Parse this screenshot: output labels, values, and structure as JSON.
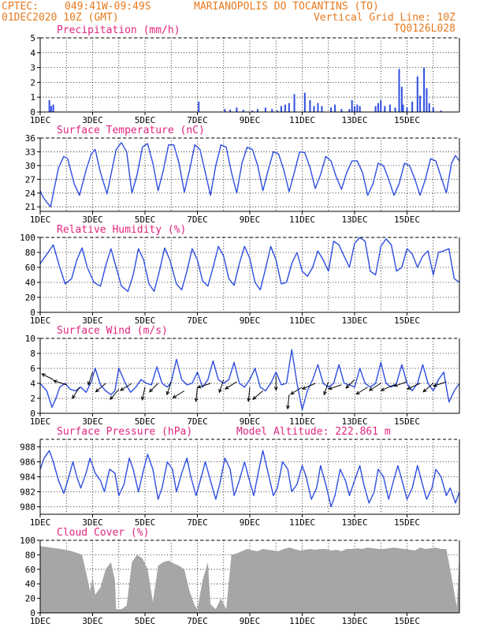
{
  "header": {
    "line1_left": "CPTEC:",
    "line1_coords": "049:41W-09:49S",
    "line1_station": "MARIANOPOLIS DO TOCANTINS (TO)",
    "line2_left": "01DEC2020 10Z (GMT)",
    "line2_right": "Vertical Grid Line: 10Z",
    "line3_right": "TQ0126L028"
  },
  "colors": {
    "header": "#e87a1e",
    "panel_title": "#e0257f",
    "series": "#2f4ee0",
    "cloud": "#a6a6a6",
    "arrow": "#000000"
  },
  "chart_data": [
    {
      "id": "precip",
      "type": "bar",
      "title": "Precipitation (mm/h)",
      "x_ticks": [
        "1DEC",
        "3DEC",
        "5DEC",
        "7DEC",
        "9DEC",
        "11DEC",
        "13DEC",
        "15DEC"
      ],
      "ylim": [
        0,
        5
      ],
      "y_ticks": [
        0,
        1,
        2,
        3,
        4,
        5
      ],
      "x_unit": "day since 01DEC2020 10Z",
      "x": [
        0.35,
        0.42,
        0.5,
        6.05,
        7.05,
        7.25,
        7.5,
        7.75,
        8.1,
        8.3,
        8.6,
        8.85,
        9.05,
        9.2,
        9.35,
        9.5,
        9.7,
        10.1,
        10.3,
        10.45,
        10.6,
        10.75,
        11.1,
        11.25,
        11.5,
        11.8,
        11.9,
        12.0,
        12.1,
        12.2,
        12.8,
        12.9,
        13.0,
        13.15,
        13.35,
        13.55,
        13.7,
        13.8,
        13.85,
        14.0,
        14.2,
        14.4,
        14.5,
        14.65,
        14.75,
        14.85,
        15.0,
        15.3
      ],
      "values": [
        0.8,
        0.4,
        0.5,
        0.7,
        0.2,
        0.15,
        0.3,
        0.15,
        0.1,
        0.2,
        0.3,
        0.2,
        0.1,
        0.4,
        0.5,
        0.6,
        1.2,
        1.3,
        0.8,
        0.4,
        0.6,
        0.4,
        0.3,
        0.5,
        0.2,
        0.2,
        0.8,
        0.4,
        0.5,
        0.4,
        0.4,
        0.6,
        0.8,
        0.4,
        0.5,
        0.3,
        2.9,
        1.7,
        0.5,
        0.3,
        0.7,
        2.4,
        1.1,
        3.0,
        1.6,
        0.6,
        0.3,
        0.1
      ]
    },
    {
      "id": "temp",
      "type": "line",
      "title": "Surface Temperature (nC)",
      "x_ticks": [
        "1DEC",
        "3DEC",
        "5DEC",
        "7DEC",
        "9DEC",
        "11DEC",
        "13DEC",
        "15DEC"
      ],
      "ylim": [
        20,
        36
      ],
      "y_ticks": [
        21,
        24,
        27,
        30,
        33,
        36
      ],
      "x_unit": "day since 01DEC2020 10Z",
      "x": [
        0,
        0.1,
        0.25,
        0.4,
        0.5,
        0.7,
        0.9,
        1.05,
        1.3,
        1.5,
        1.75,
        1.95,
        2.1,
        2.3,
        2.55,
        2.7,
        2.9,
        3.1,
        3.3,
        3.5,
        3.7,
        3.9,
        4.1,
        4.3,
        4.5,
        4.7,
        4.9,
        5.1,
        5.3,
        5.5,
        5.7,
        5.9,
        6.1,
        6.3,
        6.5,
        6.7,
        6.9,
        7.1,
        7.3,
        7.5,
        7.7,
        7.9,
        8.1,
        8.3,
        8.5,
        8.7,
        8.9,
        9.1,
        9.3,
        9.5,
        9.7,
        9.9,
        10.1,
        10.3,
        10.5,
        10.7,
        10.9,
        11.1,
        11.3,
        11.5,
        11.7,
        11.9,
        12.1,
        12.3,
        12.5,
        12.7,
        12.9,
        13.1,
        13.3,
        13.5,
        13.7,
        13.9,
        14.1,
        14.3,
        14.5,
        14.7,
        14.9,
        15.1,
        15.3,
        15.5,
        15.7,
        15.85,
        16.0
      ],
      "values": [
        24.5,
        23.2,
        22.0,
        21.0,
        24.0,
        29.5,
        32.0,
        31.5,
        26.0,
        23.5,
        29.0,
        32.5,
        33.5,
        28.5,
        23.8,
        28.0,
        33.5,
        35.0,
        33.0,
        24.0,
        28.0,
        34.0,
        34.8,
        30.5,
        24.5,
        29.0,
        34.5,
        34.5,
        30.5,
        24.2,
        29.0,
        34.5,
        33.5,
        28.5,
        23.5,
        30.0,
        34.5,
        34.0,
        28.5,
        24.0,
        30.5,
        34.0,
        33.5,
        30.0,
        24.5,
        29.0,
        33.0,
        32.5,
        29.0,
        24.3,
        28.5,
        33.0,
        32.8,
        29.5,
        25.0,
        28.0,
        32.0,
        31.0,
        27.5,
        24.8,
        28.5,
        31.0,
        31.0,
        28.5,
        23.5,
        26.0,
        30.5,
        30.0,
        27.0,
        23.5,
        26.0,
        30.5,
        30.0,
        27.0,
        23.5,
        27.0,
        31.5,
        31.0,
        27.5,
        24.0,
        30.5,
        32.2,
        31.0
      ]
    },
    {
      "id": "rh",
      "type": "line",
      "title": "Relative Humidity (%)",
      "x_ticks": [
        "1DEC",
        "3DEC",
        "5DEC",
        "7DEC",
        "9DEC",
        "11DEC",
        "13DEC",
        "15DEC"
      ],
      "ylim": [
        0,
        100
      ],
      "y_ticks": [
        0,
        20,
        40,
        60,
        80,
        100
      ],
      "x_unit": "day since 01DEC2020 10Z",
      "x": [
        0,
        0.3,
        0.5,
        0.75,
        0.95,
        1.2,
        1.4,
        1.6,
        1.8,
        2.05,
        2.3,
        2.5,
        2.7,
        2.9,
        3.1,
        3.35,
        3.55,
        3.75,
        3.95,
        4.15,
        4.35,
        4.55,
        4.75,
        4.95,
        5.2,
        5.4,
        5.6,
        5.8,
        6.0,
        6.2,
        6.4,
        6.6,
        6.8,
        7.0,
        7.2,
        7.4,
        7.6,
        7.8,
        8.0,
        8.2,
        8.4,
        8.6,
        8.8,
        9.0,
        9.2,
        9.4,
        9.6,
        9.8,
        10.0,
        10.2,
        10.4,
        10.6,
        10.8,
        11.0,
        11.2,
        11.4,
        11.6,
        11.8,
        12.0,
        12.2,
        12.4,
        12.6,
        12.8,
        13.0,
        13.2,
        13.4,
        13.6,
        13.8,
        14.0,
        14.2,
        14.4,
        14.6,
        14.8,
        15.0,
        15.2,
        15.4,
        15.6,
        15.8,
        16.0
      ],
      "values": [
        65,
        80,
        90,
        60,
        38,
        45,
        70,
        86,
        60,
        40,
        35,
        62,
        85,
        60,
        35,
        28,
        50,
        85,
        70,
        38,
        28,
        55,
        86,
        70,
        38,
        30,
        55,
        85,
        70,
        42,
        35,
        60,
        88,
        75,
        45,
        36,
        65,
        88,
        72,
        40,
        30,
        58,
        88,
        70,
        38,
        40,
        65,
        80,
        55,
        48,
        60,
        82,
        70,
        55,
        95,
        90,
        75,
        60,
        92,
        100,
        95,
        55,
        50,
        88,
        98,
        90,
        55,
        60,
        85,
        78,
        60,
        75,
        82,
        50,
        80,
        82,
        85,
        45,
        40
      ]
    },
    {
      "id": "wind",
      "type": "line",
      "title": "Surface Wind (m/s)",
      "x_ticks": [
        "1DEC",
        "3DEC",
        "5DEC",
        "7DEC",
        "9DEC",
        "11DEC",
        "13DEC",
        "15DEC"
      ],
      "ylim": [
        0,
        10
      ],
      "y_ticks": [
        0,
        2,
        4,
        6,
        8,
        10
      ],
      "x_unit": "day since 01DEC2020 10Z",
      "x": [
        0,
        0.25,
        0.45,
        0.6,
        0.75,
        0.95,
        1.15,
        1.35,
        1.55,
        1.75,
        1.95,
        2.1,
        2.3,
        2.5,
        2.7,
        2.85,
        3.0,
        3.25,
        3.45,
        3.65,
        3.85,
        4.05,
        4.25,
        4.45,
        4.65,
        4.85,
        5.0,
        5.2,
        5.4,
        5.6,
        5.8,
        6.0,
        6.2,
        6.4,
        6.6,
        6.8,
        7.0,
        7.2,
        7.4,
        7.6,
        7.8,
        8.0,
        8.2,
        8.4,
        8.6,
        8.8,
        9.0,
        9.2,
        9.4,
        9.6,
        9.8,
        10.0,
        10.2,
        10.4,
        10.6,
        10.8,
        11.0,
        11.2,
        11.4,
        11.6,
        11.8,
        12.0,
        12.2,
        12.4,
        12.6,
        12.8,
        13.0,
        13.2,
        13.4,
        13.6,
        13.8,
        14.0,
        14.2,
        14.4,
        14.6,
        14.8,
        15.0,
        15.2,
        15.4,
        15.6,
        15.8,
        16.0
      ],
      "values": [
        4.0,
        3.0,
        0.8,
        2.0,
        3.5,
        4.0,
        3.2,
        3.0,
        3.5,
        2.8,
        4.2,
        6.0,
        3.8,
        3.0,
        2.5,
        3.0,
        6.0,
        4.0,
        2.8,
        3.5,
        4.5,
        4.0,
        3.8,
        6.2,
        4.0,
        3.5,
        4.2,
        7.2,
        4.5,
        3.8,
        4.0,
        5.5,
        3.5,
        4.5,
        7.0,
        4.5,
        4.0,
        4.5,
        6.8,
        4.0,
        3.5,
        4.5,
        6.0,
        3.5,
        3.0,
        4.0,
        5.5,
        3.8,
        4.0,
        8.5,
        4.0,
        0.5,
        3.0,
        4.5,
        6.5,
        4.0,
        3.5,
        4.0,
        6.5,
        4.0,
        3.8,
        3.5,
        6.0,
        4.0,
        3.5,
        4.0,
        6.8,
        4.0,
        3.5,
        4.0,
        6.5,
        4.0,
        3.0,
        4.0,
        6.5,
        4.0,
        3.0,
        4.5,
        5.5,
        1.5,
        3.0,
        4.0
      ]
    },
    {
      "id": "pres",
      "type": "line",
      "title": "Surface Pressure (hPa)",
      "annotation": "Model Altitude: 222.861 m",
      "x_ticks": [
        "1DEC",
        "3DEC",
        "5DEC",
        "7DEC",
        "9DEC",
        "11DEC",
        "13DEC",
        "15DEC"
      ],
      "ylim": [
        979,
        989
      ],
      "y_ticks": [
        980,
        982,
        984,
        986,
        988
      ],
      "x_unit": "day since 01DEC2020 10Z",
      "x": [
        0,
        0.15,
        0.35,
        0.5,
        0.7,
        0.9,
        1.05,
        1.25,
        1.4,
        1.55,
        1.75,
        1.9,
        2.1,
        2.3,
        2.45,
        2.65,
        2.85,
        3.0,
        3.2,
        3.4,
        3.55,
        3.75,
        3.95,
        4.1,
        4.3,
        4.5,
        4.65,
        4.85,
        5.05,
        5.2,
        5.4,
        5.6,
        5.75,
        5.95,
        6.15,
        6.3,
        6.5,
        6.7,
        6.85,
        7.05,
        7.25,
        7.4,
        7.6,
        7.8,
        7.95,
        8.15,
        8.35,
        8.5,
        8.7,
        8.9,
        9.05,
        9.25,
        9.45,
        9.6,
        9.8,
        10.0,
        10.15,
        10.35,
        10.55,
        10.7,
        10.9,
        11.1,
        11.25,
        11.45,
        11.65,
        11.8,
        12.0,
        12.2,
        12.35,
        12.55,
        12.75,
        12.9,
        13.1,
        13.3,
        13.45,
        13.65,
        13.85,
        14.0,
        14.2,
        14.4,
        14.55,
        14.75,
        14.95,
        15.1,
        15.3,
        15.5,
        15.65,
        15.85,
        16.0
      ],
      "values": [
        985.0,
        986.5,
        987.5,
        986.0,
        983.5,
        981.8,
        983.5,
        986.0,
        984.0,
        982.5,
        984.5,
        986.5,
        984.5,
        983.5,
        982.0,
        985.0,
        984.5,
        981.5,
        983.0,
        986.5,
        985.0,
        982.0,
        985.0,
        987.0,
        985.0,
        981.0,
        982.5,
        986.0,
        985.0,
        982.0,
        984.5,
        986.5,
        984.0,
        981.5,
        984.0,
        986.0,
        983.5,
        981.0,
        983.0,
        986.5,
        985.0,
        981.5,
        983.5,
        986.0,
        984.0,
        981.5,
        985.0,
        987.5,
        984.5,
        981.5,
        982.5,
        986.0,
        985.0,
        982.0,
        983.0,
        985.5,
        984.0,
        981.0,
        982.5,
        985.5,
        983.0,
        980.0,
        981.5,
        985.0,
        983.5,
        981.5,
        983.5,
        985.5,
        983.0,
        980.5,
        982.0,
        985.0,
        984.0,
        981.0,
        983.0,
        985.5,
        983.0,
        981.0,
        982.5,
        985.5,
        983.5,
        981.0,
        982.5,
        985.0,
        984.0,
        981.5,
        982.5,
        980.5,
        982.0
      ]
    },
    {
      "id": "cloud",
      "type": "area",
      "title": "Cloud Cover (%)",
      "x_ticks": [
        "1DEC",
        "3DEC",
        "5DEC",
        "7DEC",
        "9DEC",
        "11DEC",
        "13DEC",
        "15DEC"
      ],
      "ylim": [
        0,
        100
      ],
      "y_ticks": [
        0,
        20,
        40,
        60,
        80,
        100
      ],
      "x_unit": "day since 01DEC2020 10Z",
      "x": [
        0,
        0.4,
        0.8,
        1.2,
        1.6,
        1.85,
        1.9,
        2.0,
        2.1,
        2.3,
        2.5,
        2.7,
        2.85,
        2.9,
        3.1,
        3.3,
        3.5,
        3.7,
        3.9,
        4.1,
        4.3,
        4.5,
        4.7,
        4.9,
        5.1,
        5.3,
        5.5,
        5.7,
        5.9,
        6.0,
        6.2,
        6.4,
        6.5,
        6.7,
        6.9,
        7.1,
        7.3,
        7.5,
        7.7,
        7.9,
        8.1,
        8.3,
        8.5,
        8.7,
        8.9,
        9.1,
        9.3,
        9.5,
        9.7,
        9.9,
        10.1,
        10.3,
        10.5,
        10.7,
        10.9,
        11.1,
        11.3,
        11.5,
        11.7,
        11.9,
        12.1,
        12.3,
        12.5,
        12.7,
        12.9,
        13.1,
        13.3,
        13.5,
        13.7,
        13.9,
        14.1,
        14.3,
        14.5,
        14.7,
        14.9,
        15.1,
        15.3,
        15.5,
        15.7,
        15.9,
        16.0
      ],
      "values": [
        92,
        90,
        88,
        85,
        80,
        40,
        30,
        50,
        25,
        35,
        60,
        70,
        45,
        5,
        5,
        10,
        70,
        80,
        75,
        60,
        15,
        65,
        70,
        72,
        68,
        65,
        60,
        30,
        10,
        5,
        45,
        70,
        12,
        5,
        20,
        5,
        80,
        82,
        85,
        88,
        86,
        85,
        88,
        87,
        86,
        85,
        88,
        90,
        88,
        86,
        87,
        88,
        87,
        88,
        88,
        86,
        87,
        85,
        88,
        88,
        89,
        88,
        90,
        89,
        88,
        88,
        89,
        90,
        89,
        88,
        87,
        86,
        90,
        88,
        89,
        90,
        88,
        88,
        50,
        8,
        80
      ]
    },
    {
      "id": "wind_vectors",
      "type": "vector",
      "title": "Surface Wind arrows (unit direction x,y)",
      "x_unit": "day since 01DEC2020 10Z",
      "x": [
        0.5,
        1.0,
        1.5,
        2.0,
        2.5,
        3.0,
        3.5,
        4.0,
        4.5,
        5.0,
        5.5,
        6.0,
        6.5,
        7.0,
        7.5,
        8.0,
        8.5,
        9.0,
        9.5,
        10.0,
        10.5,
        11.0,
        11.5,
        12.0,
        12.5,
        13.0,
        13.5,
        14.0,
        14.5,
        15.0,
        15.5
      ],
      "y": [
        4.5,
        3.8,
        3.5,
        5.5,
        4.0,
        3.2,
        4.0,
        3.5,
        4.0,
        4.2,
        3.0,
        3.5,
        4.0,
        4.5,
        4.2,
        3.5,
        3.0,
        5.0,
        2.5,
        3.5,
        4.0,
        4.2,
        3.8,
        4.5,
        3.5,
        4.0,
        3.8,
        4.2,
        4.0,
        4.0,
        4.2
      ],
      "u": [
        -0.8,
        -0.9,
        -0.5,
        -0.3,
        -0.7,
        -0.6,
        -0.8,
        -0.2,
        -0.6,
        -0.3,
        -0.8,
        -0.1,
        -0.9,
        -0.3,
        -0.8,
        -0.1,
        -0.7,
        0.0,
        -0.1,
        -0.8,
        -0.9,
        -0.3,
        -0.9,
        -0.6,
        -0.8,
        -0.8,
        -0.9,
        -0.9,
        -0.9,
        -0.7,
        -0.9
      ],
      "v": [
        0.4,
        0.3,
        -0.8,
        -0.9,
        -0.6,
        -0.7,
        -0.5,
        -0.9,
        -0.6,
        -0.9,
        -0.5,
        -1.0,
        -0.3,
        -0.9,
        -0.5,
        -1.0,
        -0.6,
        -1.0,
        -1.0,
        -0.5,
        -0.4,
        -0.9,
        -0.3,
        -0.6,
        -0.5,
        -0.5,
        -0.4,
        -0.3,
        -0.4,
        -0.6,
        -0.3
      ]
    }
  ]
}
